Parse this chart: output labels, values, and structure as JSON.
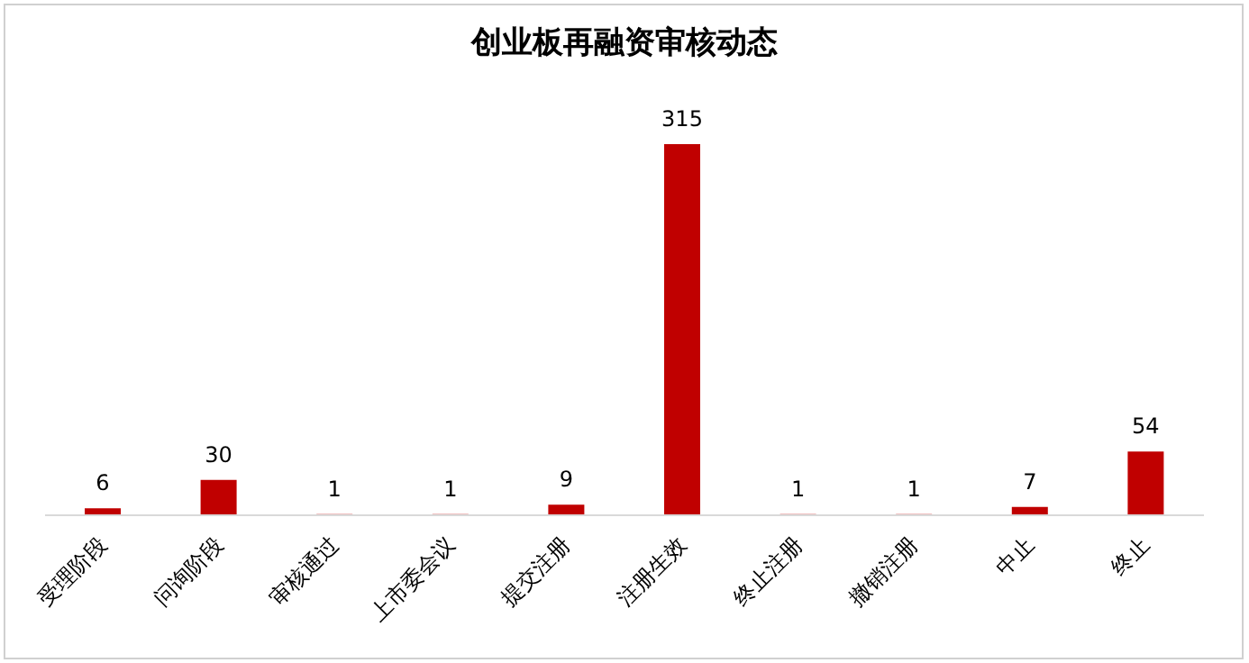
{
  "chart_data": {
    "type": "bar",
    "title": "创业板再融资审核动态",
    "categories": [
      "受理阶段",
      "问询阶段",
      "审核通过",
      "上市委会议",
      "提交注册",
      "注册生效",
      "终止注册",
      "撤销注册",
      "中止",
      "终止"
    ],
    "values": [
      6,
      30,
      1,
      1,
      9,
      315,
      1,
      1,
      7,
      54
    ],
    "color": "#c00000",
    "data_labels": true
  }
}
